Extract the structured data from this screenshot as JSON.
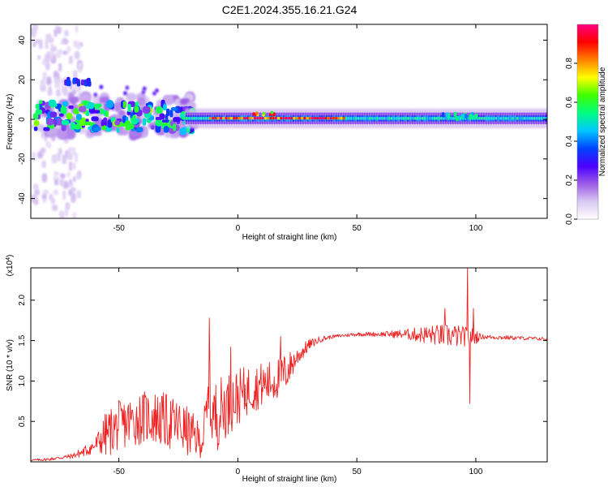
{
  "figure": {
    "title": "C2E1.2024.355.16.21.G24"
  },
  "chart_data": [
    {
      "type": "heatmap",
      "name": "spectrogram",
      "xlabel": "Height of straight line (km)",
      "ylabel": "Frequency (Hz)",
      "xlim": [
        -87,
        130
      ],
      "ylim": [
        -50,
        48
      ],
      "x_ticks": [
        -50,
        0,
        50,
        100
      ],
      "y_ticks": [
        -40,
        -20,
        0,
        20,
        40
      ],
      "colorbar": {
        "label": "Normalized spectral amplitude",
        "range": [
          0.0,
          1.0
        ],
        "ticks": [
          0.0,
          0.2,
          0.4,
          0.6,
          0.8
        ],
        "colormap": [
          "#ffffff",
          "#d9c8f2",
          "#9a5ae6",
          "#4b00ff",
          "#0044ff",
          "#00c8ff",
          "#00ff80",
          "#40ff00",
          "#ffff00",
          "#ff8000",
          "#ff0000",
          "#ff0080"
        ]
      },
      "features": [
        {
          "x_range": [
            -87,
            -20
          ],
          "center_hz": 2,
          "spread_hz": 10,
          "amplitude": 0.35,
          "note": "scattered blobs"
        },
        {
          "x_range": [
            -73,
            -63
          ],
          "center_hz": 19,
          "spread_hz": 3,
          "amplitude": 0.3
        },
        {
          "x_range": [
            -20,
            130
          ],
          "center_hz": 0.5,
          "spread_hz": 3,
          "amplitude": 0.55,
          "note": "steady narrow band"
        },
        {
          "x_range": [
            -12,
            45
          ],
          "center_hz": 0.5,
          "spread_hz": 1,
          "amplitude": 0.9,
          "note": "red core"
        }
      ]
    },
    {
      "type": "line",
      "name": "snr",
      "xlabel": "Height of straight line (km)",
      "ylabel": "SNR (10 * v/v)",
      "y_multiplier": "(x10^4)",
      "xlim": [
        -87,
        130
      ],
      "ylim": [
        0,
        2.4
      ],
      "x_ticks": [
        -50,
        0,
        50,
        100
      ],
      "y_ticks": [
        0.5,
        1.0,
        1.5,
        2.0
      ],
      "series": [
        {
          "color": "#ee2222",
          "points": [
            [
              -87,
              0.02
            ],
            [
              -80,
              0.03
            ],
            [
              -75,
              0.05
            ],
            [
              -70,
              0.07
            ],
            [
              -65,
              0.12
            ],
            [
              -60,
              0.2
            ],
            [
              -55,
              0.35
            ],
            [
              -50,
              0.45
            ],
            [
              -45,
              0.5
            ],
            [
              -40,
              0.55
            ],
            [
              -35,
              0.55
            ],
            [
              -30,
              0.5
            ],
            [
              -25,
              0.45
            ],
            [
              -20,
              0.35
            ],
            [
              -15,
              0.25
            ],
            [
              -12,
              0.75
            ],
            [
              -10,
              0.55
            ],
            [
              -5,
              0.7
            ],
            [
              0,
              0.8
            ],
            [
              5,
              0.9
            ],
            [
              10,
              0.95
            ],
            [
              15,
              1.0
            ],
            [
              20,
              1.1
            ],
            [
              25,
              1.3
            ],
            [
              30,
              1.45
            ],
            [
              35,
              1.52
            ],
            [
              40,
              1.55
            ],
            [
              50,
              1.58
            ],
            [
              60,
              1.58
            ],
            [
              70,
              1.58
            ],
            [
              80,
              1.57
            ],
            [
              90,
              1.56
            ],
            [
              95,
              1.55
            ],
            [
              100,
              1.55
            ],
            [
              110,
              1.54
            ],
            [
              120,
              1.53
            ],
            [
              130,
              1.52
            ]
          ],
          "noise": [
            [
              -87,
              0.01
            ],
            [
              -70,
              0.03
            ],
            [
              -60,
              0.1
            ],
            [
              -55,
              0.3
            ],
            [
              -30,
              0.35
            ],
            [
              -20,
              0.3
            ],
            [
              -15,
              0.2
            ],
            [
              -12,
              0.5
            ],
            [
              -5,
              0.4
            ],
            [
              5,
              0.3
            ],
            [
              20,
              0.25
            ],
            [
              25,
              0.12
            ],
            [
              32,
              0.05
            ],
            [
              40,
              0.02
            ],
            [
              60,
              0.03
            ],
            [
              70,
              0.06
            ],
            [
              80,
              0.12
            ],
            [
              90,
              0.15
            ],
            [
              100,
              0.1
            ],
            [
              102,
              0.03
            ],
            [
              130,
              0.02
            ]
          ],
          "spikes": [
            [
              -12,
              1.78
            ],
            [
              -3,
              1.42
            ],
            [
              18,
              1.55
            ],
            [
              87,
              1.9
            ],
            [
              96.5,
              2.42
            ],
            [
              97.5,
              0.72
            ],
            [
              99,
              1.9
            ]
          ]
        }
      ]
    }
  ]
}
